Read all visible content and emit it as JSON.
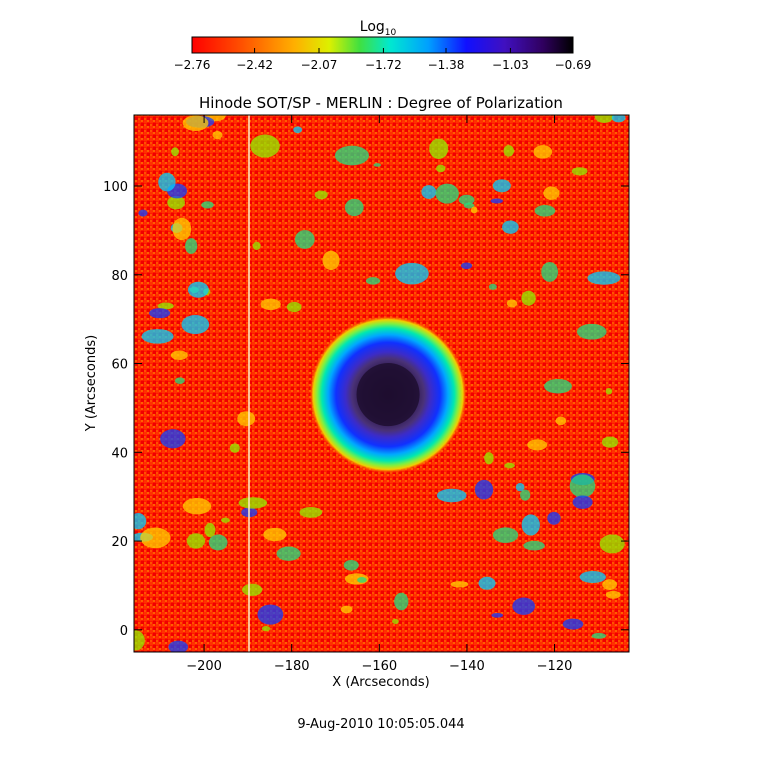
{
  "chart_data": {
    "type": "heatmap",
    "title": "Hinode SOT/SP - MERLIN : Degree of Polarization",
    "xlabel": "X (Arcseconds)",
    "ylabel": "Y (Arcseconds)",
    "xlim": [
      -216,
      -103
    ],
    "ylim": [
      -5,
      116
    ],
    "x_ticks": [
      -200,
      -180,
      -160,
      -140,
      -120
    ],
    "y_ticks": [
      0,
      20,
      40,
      60,
      80,
      100
    ],
    "colorbar": {
      "label_base": "Log",
      "label_sub": "10",
      "min": -2.76,
      "max": -0.69,
      "ticks": [
        "-2.76",
        "-2.42",
        "-2.07",
        "-1.72",
        "-1.38",
        "-1.03",
        "-0.69"
      ],
      "colormap": "rainbow (red to violet/black)"
    },
    "features": {
      "sunspot_center": [
        -158,
        53
      ],
      "umbra_radius_arcsec": 9,
      "penumbra_radius_arcsec": 18
    },
    "footer_timestamp": "9-Aug-2010 10:05:05.044"
  }
}
